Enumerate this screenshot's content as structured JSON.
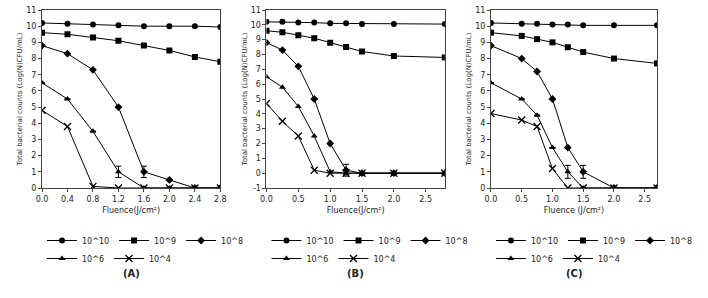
{
  "chart_data": [
    {
      "type": "line",
      "title": "(A)",
      "xlabel": "Fluence(J/cm²)",
      "ylabel": "Total bacterial counts (Log(N)CFU/mL)",
      "xlim": [
        0,
        2.8
      ],
      "xticks": [
        {
          "value": 0,
          "label": "0.0"
        },
        0.4,
        0.8,
        1.2,
        1.6,
        {
          "value": 2,
          "label": "2.0"
        },
        2.4,
        2.8
      ],
      "ylim": [
        0,
        11
      ],
      "yticks": [
        0,
        1,
        2,
        3,
        4,
        5,
        6,
        7,
        8,
        9,
        10,
        11
      ],
      "grid": false,
      "legend": "bottom",
      "series": [
        {
          "name": "10^10",
          "marker": "circle",
          "color": "black",
          "x": [
            0,
            0.4,
            0.8,
            1.2,
            1.6,
            2.0,
            2.4,
            2.8
          ],
          "values": [
            10.2,
            10.15,
            10.1,
            10.05,
            10.0,
            10.0,
            10.0,
            9.95
          ],
          "yerr": [
            null,
            null,
            null,
            null,
            null,
            null,
            null,
            null
          ]
        },
        {
          "name": "10^9",
          "marker": "square",
          "color": "black",
          "x": [
            0,
            0.4,
            0.8,
            1.2,
            1.6,
            2.0,
            2.4,
            2.8
          ],
          "values": [
            9.6,
            9.5,
            9.3,
            9.1,
            8.8,
            8.5,
            8.1,
            7.8
          ],
          "yerr": [
            null,
            null,
            null,
            null,
            null,
            null,
            null,
            null
          ]
        },
        {
          "name": "10^8",
          "marker": "diamond",
          "color": "black",
          "x": [
            0,
            0.4,
            0.8,
            1.2,
            1.6,
            2.0,
            2.4,
            2.8
          ],
          "values": [
            8.8,
            8.3,
            7.3,
            5.0,
            1.0,
            0.5,
            0.0,
            0.0
          ],
          "yerr": [
            null,
            null,
            null,
            null,
            0.35,
            null,
            null,
            null
          ]
        },
        {
          "name": "10^6",
          "marker": "triangle-up",
          "color": "black",
          "x": [
            0,
            0.4,
            0.8,
            1.2,
            1.6,
            2.0,
            2.4,
            2.8
          ],
          "values": [
            6.5,
            5.5,
            3.5,
            1.0,
            0.0,
            0.0,
            0.0,
            0.0
          ],
          "yerr": [
            null,
            null,
            null,
            0.35,
            null,
            null,
            null,
            null
          ]
        },
        {
          "name": "10^4",
          "marker": "x",
          "color": "black",
          "x": [
            0,
            0.4,
            0.8,
            1.2,
            1.6,
            2.0,
            2.4,
            2.8
          ],
          "values": [
            4.8,
            3.8,
            0.1,
            0.0,
            0.0,
            0.0,
            0.0,
            0.0
          ],
          "yerr": [
            null,
            null,
            null,
            null,
            null,
            null,
            null,
            null
          ]
        }
      ]
    },
    {
      "type": "line",
      "title": "(B)",
      "xlabel": "Fluence(J/cm²)",
      "ylabel": "Total bacterial counts (Log(N)CFU/mL)",
      "xlim": [
        0,
        2.8
      ],
      "xticks": [
        {
          "value": 0,
          "label": "0.0"
        },
        0.5,
        {
          "value": 1,
          "label": "1.0"
        },
        1.5,
        {
          "value": 2,
          "label": "2.0"
        },
        2.5
      ],
      "ylim": [
        -1,
        11
      ],
      "yticks": [
        -1,
        0,
        1,
        2,
        3,
        4,
        5,
        6,
        7,
        8,
        9,
        10,
        11
      ],
      "grid": false,
      "legend": "bottom",
      "series": [
        {
          "name": "10^10",
          "marker": "circle",
          "color": "black",
          "x": [
            0,
            0.25,
            0.5,
            0.75,
            1.0,
            1.25,
            1.5,
            2.0,
            2.8
          ],
          "values": [
            10.2,
            10.2,
            10.15,
            10.15,
            10.1,
            10.1,
            10.05,
            10.05,
            10.05
          ],
          "yerr": [
            null,
            null,
            null,
            null,
            null,
            null,
            null,
            null,
            null
          ]
        },
        {
          "name": "10^9",
          "marker": "square",
          "color": "black",
          "x": [
            0,
            0.25,
            0.5,
            0.75,
            1.0,
            1.25,
            1.5,
            2.0,
            2.8
          ],
          "values": [
            9.6,
            9.5,
            9.3,
            9.1,
            8.8,
            8.5,
            8.2,
            7.9,
            7.8
          ],
          "yerr": [
            null,
            null,
            null,
            null,
            null,
            null,
            null,
            null,
            null
          ]
        },
        {
          "name": "10^8",
          "marker": "diamond",
          "color": "black",
          "x": [
            0,
            0.25,
            0.5,
            0.75,
            1.0,
            1.25,
            1.5,
            2.0,
            2.8
          ],
          "values": [
            8.8,
            8.3,
            7.2,
            5.0,
            2.0,
            0.2,
            0.0,
            0.0,
            0.0
          ],
          "yerr": [
            null,
            null,
            null,
            null,
            null,
            0.4,
            null,
            null,
            null
          ]
        },
        {
          "name": "10^6",
          "marker": "triangle-up",
          "color": "black",
          "x": [
            0,
            0.25,
            0.5,
            0.75,
            1.0,
            1.25,
            1.5,
            2.0,
            2.8
          ],
          "values": [
            6.5,
            5.8,
            4.5,
            2.5,
            0.1,
            0.0,
            0.0,
            0.0,
            0.0
          ],
          "yerr": [
            null,
            null,
            null,
            null,
            null,
            null,
            null,
            null,
            null
          ]
        },
        {
          "name": "10^4",
          "marker": "x",
          "color": "black",
          "x": [
            0,
            0.25,
            0.5,
            0.75,
            1.0,
            1.25,
            1.5,
            2.0,
            2.8
          ],
          "values": [
            4.7,
            3.5,
            2.5,
            0.2,
            0.0,
            0.0,
            0.0,
            0.0,
            0.0
          ],
          "yerr": [
            null,
            null,
            null,
            null,
            null,
            null,
            null,
            null,
            null
          ]
        }
      ]
    },
    {
      "type": "line",
      "title": "(C)",
      "xlabel": "Fluence (J/cm²)",
      "ylabel": "Total bacterial counts (Log(N)CFU/mL)",
      "xlim": [
        0,
        2.7
      ],
      "xticks": [
        {
          "value": 0,
          "label": "0.0"
        },
        0.5,
        {
          "value": 1,
          "label": "1.0"
        },
        1.5,
        {
          "value": 2,
          "label": "2.0"
        },
        2.5
      ],
      "ylim": [
        0,
        11
      ],
      "yticks": [
        0,
        1,
        2,
        3,
        4,
        5,
        6,
        7,
        8,
        9,
        10,
        11
      ],
      "grid": false,
      "legend": "bottom",
      "series": [
        {
          "name": "10^10",
          "marker": "circle",
          "color": "black",
          "x": [
            0,
            0.5,
            0.75,
            1.0,
            1.25,
            1.5,
            2.0,
            2.7
          ],
          "values": [
            10.2,
            10.15,
            10.15,
            10.1,
            10.1,
            10.05,
            10.05,
            10.05
          ],
          "yerr": [
            null,
            null,
            null,
            null,
            null,
            null,
            null,
            null
          ]
        },
        {
          "name": "10^9",
          "marker": "square",
          "color": "black",
          "x": [
            0,
            0.5,
            0.75,
            1.0,
            1.25,
            1.5,
            2.0,
            2.7
          ],
          "values": [
            9.6,
            9.4,
            9.2,
            9.0,
            8.7,
            8.4,
            8.0,
            7.7
          ],
          "yerr": [
            null,
            null,
            null,
            null,
            null,
            null,
            null,
            null
          ]
        },
        {
          "name": "10^8",
          "marker": "diamond",
          "color": "black",
          "x": [
            0,
            0.5,
            0.75,
            1.0,
            1.25,
            1.5,
            2.0,
            2.7
          ],
          "values": [
            8.8,
            8.0,
            7.2,
            5.5,
            2.5,
            1.0,
            0.0,
            0.0
          ],
          "yerr": [
            null,
            null,
            null,
            null,
            null,
            0.4,
            null,
            null
          ]
        },
        {
          "name": "10^6",
          "marker": "triangle-up",
          "color": "black",
          "x": [
            0,
            0.5,
            0.75,
            1.0,
            1.25,
            1.5,
            2.0,
            2.7
          ],
          "values": [
            6.5,
            5.5,
            4.5,
            2.5,
            1.0,
            0.0,
            0.0,
            0.0
          ],
          "yerr": [
            null,
            null,
            null,
            null,
            0.4,
            null,
            null,
            null
          ]
        },
        {
          "name": "10^4",
          "marker": "x",
          "color": "black",
          "x": [
            0,
            0.5,
            0.75,
            1.0,
            1.25,
            1.5,
            2.0,
            2.7
          ],
          "values": [
            4.6,
            4.2,
            3.8,
            1.2,
            0.0,
            0.0,
            0.0,
            0.0
          ],
          "yerr": [
            null,
            null,
            null,
            null,
            null,
            null,
            null,
            null
          ]
        }
      ]
    }
  ]
}
